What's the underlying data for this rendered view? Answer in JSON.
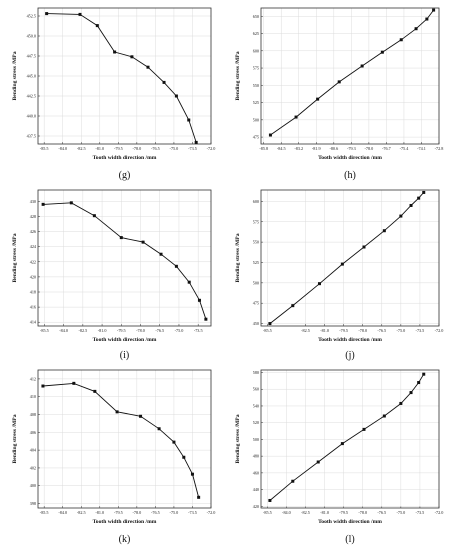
{
  "chart_data": [
    {
      "type": "line",
      "panel": "(g)",
      "xlabel": "Tooth width direction /mm",
      "ylabel": "Bending stress /MPa",
      "x_ticks": [
        "-85.5",
        "-84.0",
        "-82.5",
        "-81.0",
        "-79.5",
        "-78.0",
        "-76.5",
        "-75.0",
        "-73.5",
        "-72.0"
      ],
      "y_ticks": [
        "437.5",
        "440.0",
        "442.5",
        "445.0",
        "447.5",
        "450.0",
        "452.5"
      ],
      "xlim": [
        -86.0,
        -72.0
      ],
      "ylim": [
        436.5,
        453.5
      ],
      "grid": true,
      "x": [
        -85.3,
        -82.6,
        -81.2,
        -79.8,
        -78.4,
        -77.1,
        -75.8,
        -74.8,
        -73.8,
        -73.2
      ],
      "y": [
        452.8,
        452.7,
        451.3,
        448.0,
        447.4,
        446.1,
        444.2,
        442.5,
        439.5,
        436.7
      ]
    },
    {
      "type": "line",
      "panel": "(h)",
      "xlabel": "Tooth width direction /mm",
      "ylabel": "Bending stress /MPa",
      "x_ticks": [
        "-85.8",
        "-84.5",
        "-83.2",
        "-81.9",
        "-80.6",
        "-79.3",
        "-78.0",
        "-76.7",
        "-75.4",
        "-74.1",
        "-72.8"
      ],
      "y_ticks": [
        "475",
        "500",
        "525",
        "550",
        "575",
        "600",
        "625",
        "650"
      ],
      "xlim": [
        -86.0,
        -72.8
      ],
      "ylim": [
        465,
        662
      ],
      "grid": true,
      "x": [
        -85.3,
        -83.4,
        -81.8,
        -80.2,
        -78.5,
        -77.0,
        -75.6,
        -74.5,
        -73.7,
        -73.2
      ],
      "y": [
        478,
        504,
        530,
        555,
        578,
        598,
        616,
        632,
        646,
        659
      ]
    },
    {
      "type": "line",
      "panel": "(i)",
      "xlabel": "Tooth width direction /mm",
      "ylabel": "Bending stress /MPa",
      "x_ticks": [
        "-85.5",
        "-84.0",
        "-82.5",
        "-81.0",
        "-79.5",
        "-78.0",
        "-76.5",
        "-75.0",
        "-73.5"
      ],
      "y_ticks": [
        "414",
        "416",
        "418",
        "420",
        "422",
        "424",
        "426",
        "428",
        "430"
      ],
      "xlim": [
        -86.0,
        -72.5
      ],
      "ylim": [
        413.5,
        431.5
      ],
      "grid": true,
      "x": [
        -85.6,
        -83.4,
        -81.6,
        -79.5,
        -77.8,
        -76.4,
        -75.2,
        -74.2,
        -73.4,
        -72.9
      ],
      "y": [
        429.6,
        429.8,
        428.1,
        425.2,
        424.6,
        423.0,
        421.4,
        419.3,
        416.9,
        414.4
      ]
    },
    {
      "type": "line",
      "panel": "(j)",
      "xlabel": "Tooth width direction /mm",
      "ylabel": "Bending stress /MPa",
      "x_ticks": [
        "-85.5",
        "-82.5",
        "-81.0",
        "-79.5",
        "-78.0",
        "-76.5",
        "-75.0",
        "-73.5",
        "-72.0"
      ],
      "y_ticks": [
        "450",
        "475",
        "500",
        "525",
        "550",
        "575",
        "600"
      ],
      "xlim": [
        -86.0,
        -72.0
      ],
      "ylim": [
        447,
        614
      ],
      "grid": true,
      "x": [
        -85.3,
        -83.5,
        -81.4,
        -79.6,
        -77.9,
        -76.3,
        -75.0,
        -74.2,
        -73.6,
        -73.2
      ],
      "y": [
        450,
        472,
        499,
        523,
        544,
        564,
        582,
        595,
        604,
        611
      ]
    },
    {
      "type": "line",
      "panel": "(k)",
      "xlabel": "Tooth width direction /mm",
      "ylabel": "Bending stress /MPa",
      "x_ticks": [
        "-85.5",
        "-84.0",
        "-82.5",
        "-81.0",
        "-79.5",
        "-78.0",
        "-76.5",
        "-75.0",
        "-73.5",
        "-72.0"
      ],
      "y_ticks": [
        "398",
        "400",
        "402",
        "404",
        "406",
        "408",
        "410",
        "412"
      ],
      "xlim": [
        -86.0,
        -72.0
      ],
      "ylim": [
        397.5,
        413.0
      ],
      "grid": true,
      "x": [
        -85.6,
        -83.1,
        -81.4,
        -79.6,
        -77.7,
        -76.2,
        -75.0,
        -74.2,
        -73.5,
        -73.0
      ],
      "y": [
        411.2,
        411.5,
        410.6,
        408.3,
        407.8,
        406.4,
        404.9,
        403.2,
        401.3,
        398.7
      ]
    },
    {
      "type": "line",
      "panel": "(l)",
      "xlabel": "Tooth width direction /mm",
      "ylabel": "Bending stress /MPa",
      "x_ticks": [
        "-85.5",
        "-84.0",
        "-82.5",
        "-81.0",
        "-79.5",
        "-78.0",
        "-76.5",
        "-75.0",
        "-73.5",
        "-72.0"
      ],
      "y_ticks": [
        "420",
        "440",
        "460",
        "480",
        "500",
        "520",
        "540",
        "560",
        "580"
      ],
      "xlim": [
        -86.0,
        -72.0
      ],
      "ylim": [
        418,
        583
      ],
      "grid": true,
      "x": [
        -85.3,
        -83.5,
        -81.5,
        -79.6,
        -77.9,
        -76.3,
        -75.0,
        -74.2,
        -73.6,
        -73.2
      ],
      "y": [
        427,
        450,
        473,
        495,
        512,
        528,
        543,
        556,
        568,
        578
      ]
    }
  ]
}
